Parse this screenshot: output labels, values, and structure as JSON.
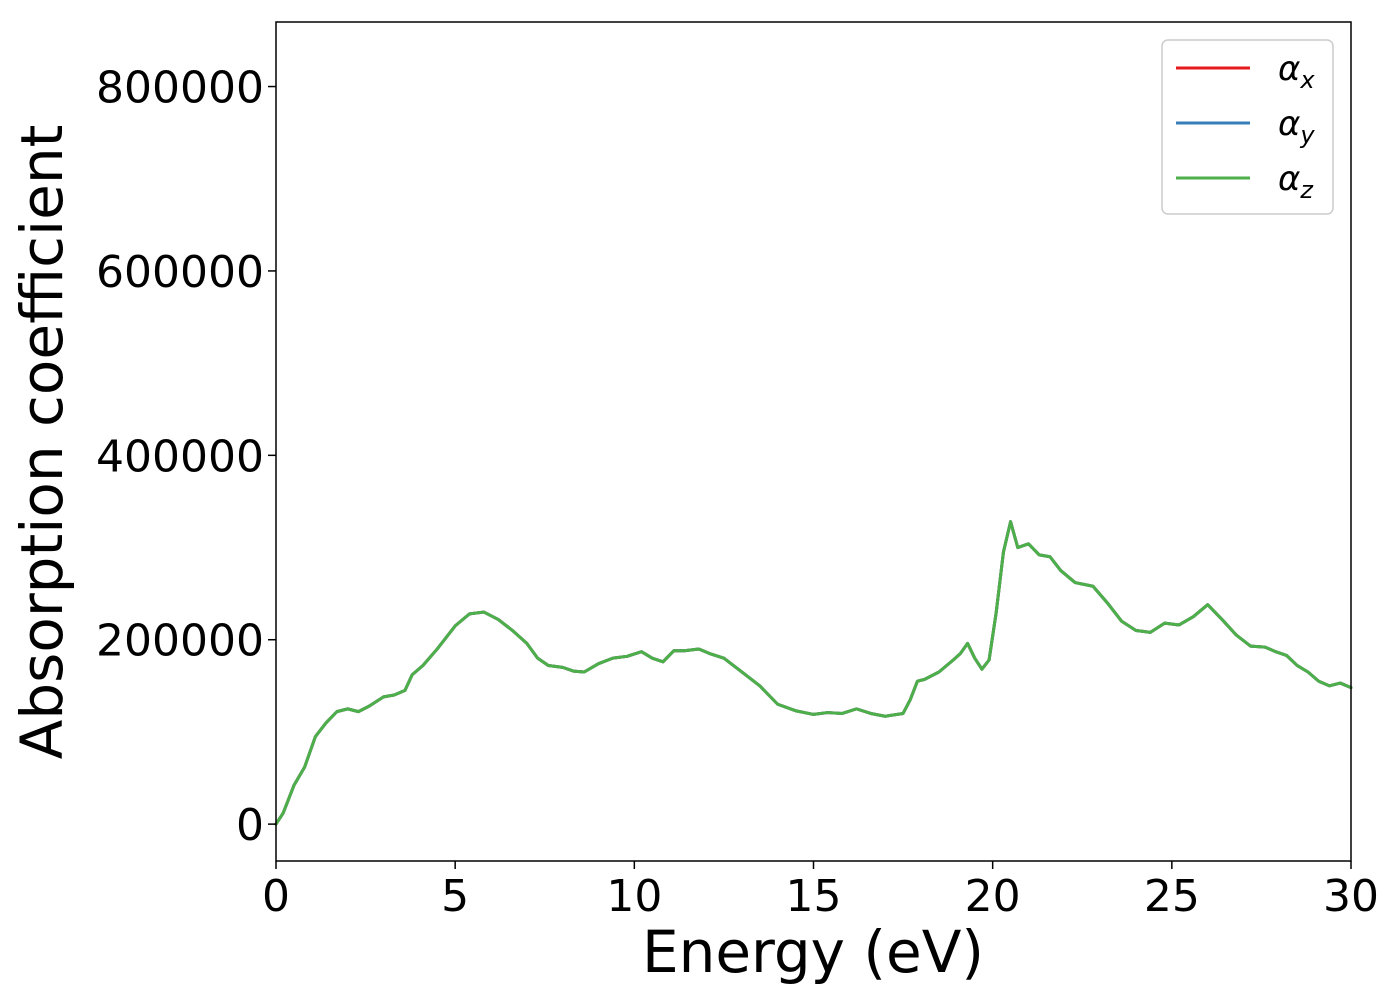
{
  "chart_data": {
    "type": "line",
    "xlabel": "Energy (eV)",
    "ylabel": "Absorption coefficient",
    "xlim": [
      0,
      30
    ],
    "ylim": [
      -40000,
      870000
    ],
    "xticks": [
      0,
      5,
      10,
      15,
      20,
      25,
      30
    ],
    "xtick_labels": [
      "0",
      "5",
      "10",
      "15",
      "20",
      "25",
      "30"
    ],
    "yticks": [
      0,
      200000,
      400000,
      600000,
      800000
    ],
    "ytick_labels": [
      "0",
      "200000",
      "400000",
      "600000",
      "800000"
    ],
    "grid": false,
    "legend_position": "top-right",
    "x": [
      0,
      0.2,
      0.5,
      0.8,
      1.1,
      1.4,
      1.7,
      2.0,
      2.3,
      2.6,
      3.0,
      3.3,
      3.6,
      3.8,
      4.1,
      4.5,
      5.0,
      5.4,
      5.8,
      6.2,
      6.6,
      7.0,
      7.3,
      7.6,
      8.0,
      8.3,
      8.6,
      9.0,
      9.4,
      9.8,
      10.2,
      10.5,
      10.8,
      11.1,
      11.4,
      11.8,
      12.1,
      12.5,
      13.0,
      13.5,
      14.0,
      14.5,
      15.0,
      15.4,
      15.8,
      16.2,
      16.6,
      17.0,
      17.5,
      17.7,
      17.9,
      18.1,
      18.5,
      18.9,
      19.1,
      19.3,
      19.5,
      19.7,
      19.9,
      20.1,
      20.3,
      20.5,
      20.7,
      21.0,
      21.3,
      21.6,
      21.9,
      22.3,
      22.8,
      23.2,
      23.6,
      24.0,
      24.4,
      24.8,
      25.2,
      25.6,
      26.0,
      26.4,
      26.8,
      27.2,
      27.6,
      27.9,
      28.2,
      28.5,
      28.8,
      29.1,
      29.4,
      29.7,
      30.0
    ],
    "series": [
      {
        "name": "α_x",
        "color": "#e41a1c",
        "values": [
          0,
          12000,
          42000,
          62000,
          95000,
          110000,
          122000,
          125000,
          122000,
          128000,
          138000,
          140000,
          145000,
          162000,
          172000,
          190000,
          215000,
          228000,
          230000,
          222000,
          210000,
          196000,
          180000,
          172000,
          170000,
          166000,
          165000,
          174000,
          180000,
          182000,
          187000,
          180000,
          176000,
          188000,
          188000,
          190000,
          185000,
          180000,
          165000,
          150000,
          130000,
          123000,
          119000,
          121000,
          120000,
          125000,
          120000,
          117000,
          120000,
          135000,
          155000,
          157000,
          165000,
          178000,
          185000,
          196000,
          180000,
          168000,
          178000,
          230000,
          295000,
          328000,
          300000,
          304000,
          292000,
          290000,
          275000,
          262000,
          258000,
          240000,
          220000,
          210000,
          208000,
          218000,
          216000,
          225000,
          238000,
          222000,
          205000,
          193000,
          192000,
          187000,
          183000,
          172000,
          165000,
          155000,
          150000,
          153000,
          148000
        ]
      },
      {
        "name": "α_y",
        "color": "#377eb8",
        "values": [
          0,
          12000,
          42000,
          62000,
          95000,
          110000,
          122000,
          125000,
          122000,
          128000,
          138000,
          140000,
          145000,
          162000,
          172000,
          190000,
          215000,
          228000,
          230000,
          222000,
          210000,
          196000,
          180000,
          172000,
          170000,
          166000,
          165000,
          174000,
          180000,
          182000,
          187000,
          180000,
          176000,
          188000,
          188000,
          190000,
          185000,
          180000,
          165000,
          150000,
          130000,
          123000,
          119000,
          121000,
          120000,
          125000,
          120000,
          117000,
          120000,
          135000,
          155000,
          157000,
          165000,
          178000,
          185000,
          196000,
          180000,
          168000,
          178000,
          230000,
          295000,
          328000,
          300000,
          304000,
          292000,
          290000,
          275000,
          262000,
          258000,
          240000,
          220000,
          210000,
          208000,
          218000,
          216000,
          225000,
          238000,
          222000,
          205000,
          193000,
          192000,
          187000,
          183000,
          172000,
          165000,
          155000,
          150000,
          153000,
          148000
        ]
      },
      {
        "name": "α_z",
        "color": "#4daf4a",
        "values": [
          0,
          12000,
          42000,
          62000,
          95000,
          110000,
          122000,
          125000,
          122000,
          128000,
          138000,
          140000,
          145000,
          162000,
          172000,
          190000,
          215000,
          228000,
          230000,
          222000,
          210000,
          196000,
          180000,
          172000,
          170000,
          166000,
          165000,
          174000,
          180000,
          182000,
          187000,
          180000,
          176000,
          188000,
          188000,
          190000,
          185000,
          180000,
          165000,
          150000,
          130000,
          123000,
          119000,
          121000,
          120000,
          125000,
          120000,
          117000,
          120000,
          135000,
          155000,
          157000,
          165000,
          178000,
          185000,
          196000,
          180000,
          168000,
          178000,
          230000,
          295000,
          328000,
          300000,
          304000,
          292000,
          290000,
          275000,
          262000,
          258000,
          240000,
          220000,
          210000,
          208000,
          218000,
          216000,
          225000,
          238000,
          222000,
          205000,
          193000,
          192000,
          187000,
          183000,
          172000,
          165000,
          155000,
          150000,
          153000,
          148000
        ]
      }
    ],
    "legend": [
      {
        "symbol": "α",
        "subscript": "x",
        "color": "#e41a1c"
      },
      {
        "symbol": "α",
        "subscript": "y",
        "color": "#377eb8"
      },
      {
        "symbol": "α",
        "subscript": "z",
        "color": "#4daf4a"
      }
    ]
  }
}
